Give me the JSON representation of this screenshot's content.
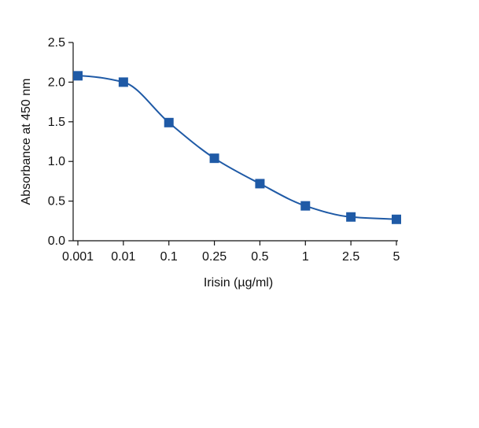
{
  "chart_data": {
    "type": "line",
    "title": "",
    "xlabel": "Irisin (µg/ml)",
    "ylabel": "Absorbance at 450 nm",
    "categories": [
      "0.001",
      "0.01",
      "0.1",
      "0.25",
      "0.5",
      "1",
      "2.5",
      "5"
    ],
    "series": [
      {
        "values": [
          2.08,
          2.0,
          1.49,
          1.04,
          0.72,
          0.44,
          0.3,
          0.27
        ]
      }
    ],
    "ylim": [
      0,
      2.5
    ],
    "yticks": [
      "0.0",
      "0.5",
      "1.0",
      "1.5",
      "2.0",
      "2.5"
    ],
    "grid": false,
    "legend": "none",
    "x_axis_type": "categorical",
    "colors": {
      "series": "#1f5aa6",
      "marker": "#1f5aa6",
      "axis": "#111111"
    }
  }
}
